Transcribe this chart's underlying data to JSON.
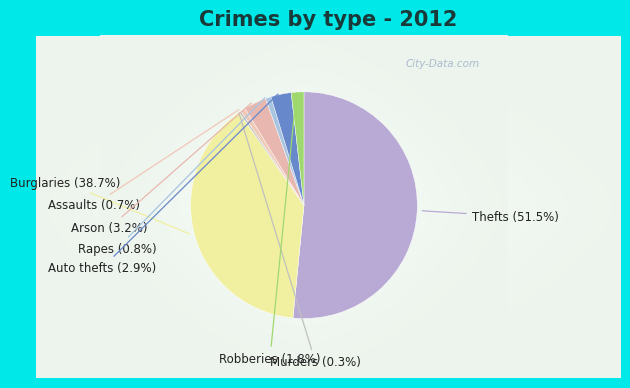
{
  "title": "Crimes by type - 2012",
  "title_fontsize": 15,
  "labels": [
    "Thefts",
    "Burglaries",
    "Murders",
    "Assaults",
    "Arson",
    "Rapes",
    "Auto thefts",
    "Robberies"
  ],
  "pct_labels": [
    "Thefts (51.5%)",
    "Burglaries (38.7%)",
    "Murders (0.3%)",
    "Assaults (0.7%)",
    "Arson (3.2%)",
    "Rapes (0.8%)",
    "Auto thefts (2.9%)",
    "Robberies (1.8%)"
  ],
  "values": [
    51.5,
    38.7,
    0.3,
    0.7,
    3.2,
    0.8,
    2.9,
    1.8
  ],
  "slice_colors": [
    "#b8aad4",
    "#f0f0a0",
    "#c0c0c0",
    "#f0c8b8",
    "#e8b8b0",
    "#a8c4e0",
    "#6888cc",
    "#a0d870"
  ],
  "cyan_bar": "#00e8e8",
  "border_cyan": "#00d8d8",
  "bg_color": "#e8f4e8",
  "label_line_colors": [
    "#b8aad4",
    "#f0f0a0",
    "#c0c0c0",
    "#f0c8b8",
    "#e8b8b0",
    "#a8c4e0",
    "#6888cc",
    "#a0d870"
  ],
  "startangle": 90,
  "label_fontsize": 8.5,
  "title_color": "#1a3a3a"
}
